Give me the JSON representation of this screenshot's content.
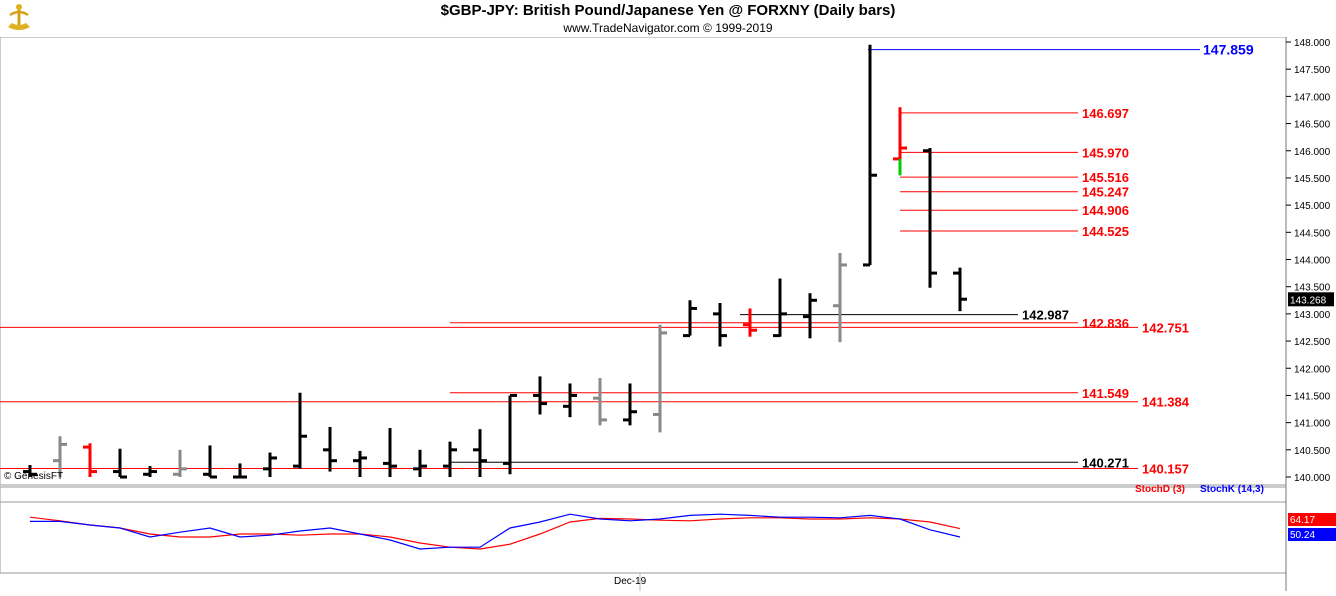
{
  "header": {
    "title": "$GBP-JPY:  British Pound/Japanese Yen @ FORXNY  (Daily bars)",
    "subtitle": "www.TradeNavigator.com © 1999-2019"
  },
  "watermark": "© GenesisFT",
  "chart_data": [
    {
      "type": "ohlc",
      "ylim": [
        140.0,
        148.0
      ],
      "y_ticks": [
        "140.000",
        "140.500",
        "141.000",
        "141.500",
        "142.000",
        "142.500",
        "143.000",
        "143.500",
        "144.000",
        "144.500",
        "145.000",
        "145.500",
        "146.000",
        "146.500",
        "147.000",
        "147.500",
        "148.000"
      ],
      "last_price": "143.268",
      "x_label": "Dec-19",
      "bars": [
        {
          "h": 140.22,
          "l": 140.0,
          "o": 140.1,
          "c": 140.05,
          "color": "black"
        },
        {
          "h": 140.75,
          "l": 140.0,
          "o": 140.3,
          "c": 140.6,
          "color": "gray"
        },
        {
          "h": 140.62,
          "l": 140.0,
          "o": 140.55,
          "c": 140.1,
          "color": "red"
        },
        {
          "h": 140.52,
          "l": 140.0,
          "o": 140.1,
          "c": 140.0,
          "color": "black"
        },
        {
          "h": 140.2,
          "l": 140.0,
          "o": 140.05,
          "c": 140.1,
          "color": "black"
        },
        {
          "h": 140.5,
          "l": 140.0,
          "o": 140.05,
          "c": 140.15,
          "color": "gray"
        },
        {
          "h": 140.58,
          "l": 140.0,
          "o": 140.05,
          "c": 140.0,
          "color": "black"
        },
        {
          "h": 140.25,
          "l": 140.0,
          "o": 140.0,
          "c": 140.0,
          "color": "black"
        },
        {
          "h": 140.45,
          "l": 140.0,
          "o": 140.15,
          "c": 140.35,
          "color": "black"
        },
        {
          "h": 141.55,
          "l": 140.15,
          "o": 140.2,
          "c": 140.75,
          "color": "black"
        },
        {
          "h": 140.92,
          "l": 140.1,
          "o": 140.5,
          "c": 140.3,
          "color": "black"
        },
        {
          "h": 140.48,
          "l": 140.0,
          "o": 140.3,
          "c": 140.35,
          "color": "black"
        },
        {
          "h": 140.9,
          "l": 140.0,
          "o": 140.25,
          "c": 140.2,
          "color": "black"
        },
        {
          "h": 140.5,
          "l": 140.0,
          "o": 140.15,
          "c": 140.2,
          "color": "black"
        },
        {
          "h": 140.65,
          "l": 140.0,
          "o": 140.2,
          "c": 140.5,
          "color": "black"
        },
        {
          "h": 140.88,
          "l": 140.0,
          "o": 140.5,
          "c": 140.3,
          "color": "black"
        },
        {
          "h": 141.5,
          "l": 140.05,
          "o": 140.25,
          "c": 141.5,
          "color": "black"
        },
        {
          "h": 141.85,
          "l": 141.15,
          "o": 141.5,
          "c": 141.35,
          "color": "black"
        },
        {
          "h": 141.72,
          "l": 141.1,
          "o": 141.3,
          "c": 141.5,
          "color": "black"
        },
        {
          "h": 141.82,
          "l": 140.95,
          "o": 141.45,
          "c": 141.05,
          "color": "gray"
        },
        {
          "h": 141.72,
          "l": 140.95,
          "o": 141.05,
          "c": 141.2,
          "color": "black"
        },
        {
          "h": 142.8,
          "l": 140.82,
          "o": 141.15,
          "c": 142.65,
          "color": "gray"
        },
        {
          "h": 143.25,
          "l": 142.6,
          "o": 142.6,
          "c": 143.1,
          "color": "black"
        },
        {
          "h": 143.2,
          "l": 142.4,
          "o": 143.0,
          "c": 142.6,
          "color": "black"
        },
        {
          "h": 143.1,
          "l": 142.58,
          "o": 142.8,
          "c": 142.7,
          "color": "red"
        },
        {
          "h": 143.65,
          "l": 142.58,
          "o": 142.6,
          "c": 143.0,
          "color": "black"
        },
        {
          "h": 143.38,
          "l": 142.55,
          "o": 142.95,
          "c": 143.25,
          "color": "black"
        },
        {
          "h": 144.12,
          "l": 142.48,
          "o": 143.15,
          "c": 143.9,
          "color": "gray"
        },
        {
          "h": 147.95,
          "l": 143.9,
          "o": 143.9,
          "c": 145.55,
          "color": "black"
        },
        {
          "h": 146.8,
          "l": 145.55,
          "o": 145.85,
          "c": 146.05,
          "color": "red",
          "low_green": true
        },
        {
          "h": 146.05,
          "l": 143.48,
          "o": 146.0,
          "c": 143.75,
          "color": "black"
        },
        {
          "h": 143.85,
          "l": 143.05,
          "o": 143.75,
          "c": 143.27,
          "color": "black"
        }
      ],
      "levels": [
        {
          "value": 147.859,
          "label": "147.859",
          "color": "#0000ff"
        },
        {
          "value": 146.697,
          "label": "146.697",
          "color": "#ff0000"
        },
        {
          "value": 145.97,
          "label": "145.970",
          "color": "#ff0000"
        },
        {
          "value": 145.516,
          "label": "145.516",
          "color": "#ff0000"
        },
        {
          "value": 145.247,
          "label": "145.247",
          "color": "#ff0000"
        },
        {
          "value": 144.906,
          "label": "144.906",
          "color": "#ff0000"
        },
        {
          "value": 144.525,
          "label": "144.525",
          "color": "#ff0000"
        },
        {
          "value": 142.987,
          "label": "142.987",
          "color": "#000000"
        },
        {
          "value": 142.836,
          "label": "142.836",
          "color": "#ff0000"
        },
        {
          "value": 142.751,
          "label": "142.751",
          "color": "#ff0000"
        },
        {
          "value": 141.549,
          "label": "141.549",
          "color": "#ff0000"
        },
        {
          "value": 141.384,
          "label": "141.384",
          "color": "#ff0000"
        },
        {
          "value": 140.271,
          "label": "140.271",
          "color": "#000000"
        },
        {
          "value": 140.157,
          "label": "140.157",
          "color": "#ff0000"
        }
      ]
    },
    {
      "type": "line",
      "ylim": [
        0,
        100
      ],
      "legend": [
        "StochD (3)",
        "StochK (14,3)"
      ],
      "last_values": {
        "d": "64.17",
        "k": "50.24"
      },
      "series": [
        {
          "name": "StochD (3)",
          "color": "#ff0000",
          "values": [
            83,
            77,
            70,
            65,
            55,
            50,
            50,
            55,
            55,
            53,
            55,
            55,
            50,
            40,
            33,
            30,
            38,
            55,
            75,
            81,
            80,
            78,
            77,
            80,
            82,
            82,
            80,
            80,
            82,
            80,
            75,
            64
          ]
        },
        {
          "name": "StochK (14,3)",
          "color": "#0000ff",
          "values": [
            76,
            76,
            70,
            65,
            50,
            58,
            65,
            50,
            53,
            60,
            65,
            55,
            45,
            30,
            33,
            33,
            65,
            75,
            88,
            80,
            77,
            80,
            86,
            88,
            86,
            83,
            83,
            82,
            86,
            80,
            62,
            50
          ]
        }
      ]
    }
  ]
}
